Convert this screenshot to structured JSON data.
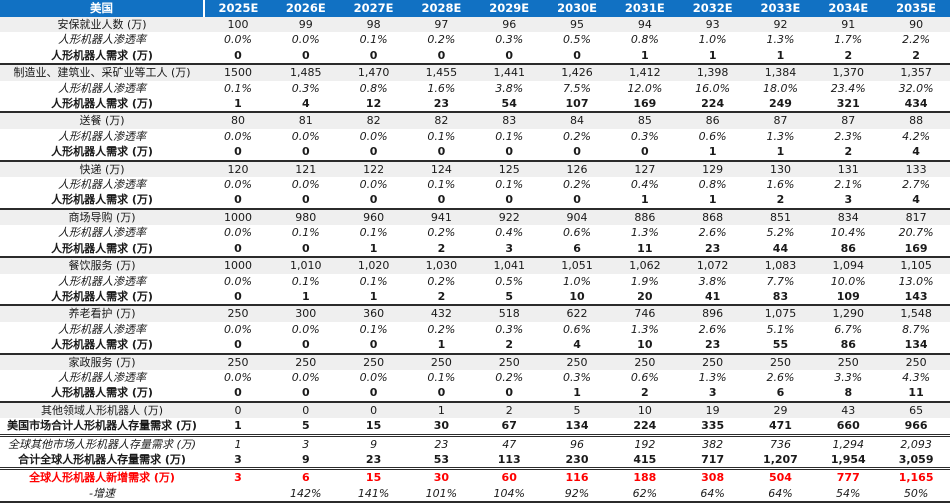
{
  "header": {
    "region_label": "美国",
    "years": [
      "2025E",
      "2026E",
      "2027E",
      "2028E",
      "2029E",
      "2030E",
      "2031E",
      "2032E",
      "2033E",
      "2034E",
      "2035E"
    ]
  },
  "colors": {
    "header_bg": "#1171C3",
    "band_bg": "#EFEFEF",
    "highlight_red": "#FF0000",
    "separator": "#2b2b2b"
  },
  "table": {
    "rows": [
      {
        "type": "category-row",
        "label": "安保就业人数 (万)",
        "values": [
          "100",
          "99",
          "98",
          "97",
          "96",
          "95",
          "94",
          "93",
          "92",
          "91",
          "90"
        ]
      },
      {
        "type": "penetration-row",
        "label": "人形机器人渗透率",
        "values": [
          "0.0%",
          "0.0%",
          "0.1%",
          "0.2%",
          "0.3%",
          "0.5%",
          "0.8%",
          "1.0%",
          "1.3%",
          "1.7%",
          "2.2%"
        ]
      },
      {
        "type": "demand-row",
        "label": "人形机器人需求 (万)",
        "values": [
          "0",
          "0",
          "0",
          "0",
          "0",
          "0",
          "1",
          "1",
          "1",
          "2",
          "2"
        ]
      },
      {
        "type": "category-row",
        "label": "制造业、建筑业、采矿业等工人 (万)",
        "values": [
          "1500",
          "1,485",
          "1,470",
          "1,455",
          "1,441",
          "1,426",
          "1,412",
          "1,398",
          "1,384",
          "1,370",
          "1,357"
        ]
      },
      {
        "type": "penetration-row",
        "label": "人形机器人渗透率",
        "values": [
          "0.1%",
          "0.3%",
          "0.8%",
          "1.6%",
          "3.8%",
          "7.5%",
          "12.0%",
          "16.0%",
          "18.0%",
          "23.4%",
          "32.0%"
        ]
      },
      {
        "type": "demand-row",
        "label": "人形机器人需求 (万)",
        "values": [
          "1",
          "4",
          "12",
          "23",
          "54",
          "107",
          "169",
          "224",
          "249",
          "321",
          "434"
        ]
      },
      {
        "type": "category-row",
        "label": "送餐 (万)",
        "values": [
          "80",
          "81",
          "82",
          "82",
          "83",
          "84",
          "85",
          "86",
          "87",
          "87",
          "88"
        ]
      },
      {
        "type": "penetration-row",
        "label": "人形机器人渗透率",
        "values": [
          "0.0%",
          "0.0%",
          "0.0%",
          "0.1%",
          "0.1%",
          "0.2%",
          "0.3%",
          "0.6%",
          "1.3%",
          "2.3%",
          "4.2%"
        ]
      },
      {
        "type": "demand-row",
        "label": "人形机器人需求 (万)",
        "values": [
          "0",
          "0",
          "0",
          "0",
          "0",
          "0",
          "0",
          "1",
          "1",
          "2",
          "4"
        ]
      },
      {
        "type": "category-row",
        "label": "快递 (万)",
        "values": [
          "120",
          "121",
          "122",
          "124",
          "125",
          "126",
          "127",
          "129",
          "130",
          "131",
          "133"
        ]
      },
      {
        "type": "penetration-row",
        "label": "人形机器人渗透率",
        "values": [
          "0.0%",
          "0.0%",
          "0.0%",
          "0.1%",
          "0.1%",
          "0.2%",
          "0.4%",
          "0.8%",
          "1.6%",
          "2.1%",
          "2.7%"
        ]
      },
      {
        "type": "demand-row",
        "label": "人形机器人需求 (万)",
        "values": [
          "0",
          "0",
          "0",
          "0",
          "0",
          "0",
          "1",
          "1",
          "2",
          "3",
          "4"
        ]
      },
      {
        "type": "category-row",
        "label": "商场导购 (万)",
        "values": [
          "1000",
          "980",
          "960",
          "941",
          "922",
          "904",
          "886",
          "868",
          "851",
          "834",
          "817"
        ]
      },
      {
        "type": "penetration-row",
        "label": "人形机器人渗透率",
        "values": [
          "0.0%",
          "0.1%",
          "0.1%",
          "0.2%",
          "0.4%",
          "0.6%",
          "1.3%",
          "2.6%",
          "5.2%",
          "10.4%",
          "20.7%"
        ]
      },
      {
        "type": "demand-row",
        "label": "人形机器人需求 (万)",
        "values": [
          "0",
          "0",
          "1",
          "2",
          "3",
          "6",
          "11",
          "23",
          "44",
          "86",
          "169"
        ]
      },
      {
        "type": "category-row",
        "label": "餐饮服务 (万)",
        "values": [
          "1000",
          "1,010",
          "1,020",
          "1,030",
          "1,041",
          "1,051",
          "1,062",
          "1,072",
          "1,083",
          "1,094",
          "1,105"
        ]
      },
      {
        "type": "penetration-row",
        "label": "人形机器人渗透率",
        "values": [
          "0.0%",
          "0.1%",
          "0.1%",
          "0.2%",
          "0.5%",
          "1.0%",
          "1.9%",
          "3.8%",
          "7.7%",
          "10.0%",
          "13.0%"
        ]
      },
      {
        "type": "demand-row",
        "label": "人形机器人需求 (万)",
        "values": [
          "0",
          "1",
          "1",
          "2",
          "5",
          "10",
          "20",
          "41",
          "83",
          "109",
          "143"
        ]
      },
      {
        "type": "category-row",
        "label": "养老看护 (万)",
        "values": [
          "250",
          "300",
          "360",
          "432",
          "518",
          "622",
          "746",
          "896",
          "1,075",
          "1,290",
          "1,548"
        ]
      },
      {
        "type": "penetration-row",
        "label": "人形机器人渗透率",
        "values": [
          "0.0%",
          "0.0%",
          "0.1%",
          "0.2%",
          "0.3%",
          "0.6%",
          "1.3%",
          "2.6%",
          "5.1%",
          "6.7%",
          "8.7%"
        ]
      },
      {
        "type": "demand-row",
        "label": "人形机器人需求 (万)",
        "values": [
          "0",
          "0",
          "0",
          "1",
          "2",
          "4",
          "10",
          "23",
          "55",
          "86",
          "134"
        ]
      },
      {
        "type": "category-row",
        "label": "家政服务 (万)",
        "values": [
          "250",
          "250",
          "250",
          "250",
          "250",
          "250",
          "250",
          "250",
          "250",
          "250",
          "250"
        ]
      },
      {
        "type": "penetration-row",
        "label": "人形机器人渗透率",
        "values": [
          "0.0%",
          "0.0%",
          "0.0%",
          "0.1%",
          "0.2%",
          "0.3%",
          "0.6%",
          "1.3%",
          "2.6%",
          "3.3%",
          "4.3%"
        ]
      },
      {
        "type": "demand-row",
        "label": "人形机器人需求 (万)",
        "values": [
          "0",
          "0",
          "0",
          "0",
          "0",
          "1",
          "2",
          "3",
          "6",
          "8",
          "11"
        ]
      },
      {
        "type": "other-fields-row",
        "label": "其他领域人形机器人 (万)",
        "values": [
          "0",
          "0",
          "0",
          "1",
          "2",
          "5",
          "10",
          "19",
          "29",
          "43",
          "65"
        ]
      },
      {
        "type": "us-total-row",
        "label": "美国市场合计人形机器人存量需求 (万)",
        "values": [
          "1",
          "5",
          "15",
          "30",
          "67",
          "134",
          "224",
          "335",
          "471",
          "660",
          "966"
        ]
      },
      {
        "type": "global-other-row",
        "label": "全球其他市场人形机器人存量需求 (万)",
        "values": [
          "1",
          "3",
          "9",
          "23",
          "47",
          "96",
          "192",
          "382",
          "736",
          "1,294",
          "2,093"
        ]
      },
      {
        "type": "global-total-row",
        "label": "合计全球人形机器人存量需求 (万)",
        "values": [
          "3",
          "9",
          "23",
          "53",
          "113",
          "230",
          "415",
          "717",
          "1,207",
          "1,954",
          "3,059"
        ]
      },
      {
        "type": "new-demand-row",
        "label": "全球人形机器人新增需求 (万)",
        "values": [
          "3",
          "6",
          "15",
          "30",
          "60",
          "116",
          "188",
          "308",
          "504",
          "777",
          "1,165"
        ]
      },
      {
        "type": "growth-rate-row",
        "label": "-增速",
        "values": [
          "",
          "142%",
          "141%",
          "101%",
          "104%",
          "92%",
          "62%",
          "64%",
          "64%",
          "54%",
          "50%"
        ]
      }
    ]
  }
}
